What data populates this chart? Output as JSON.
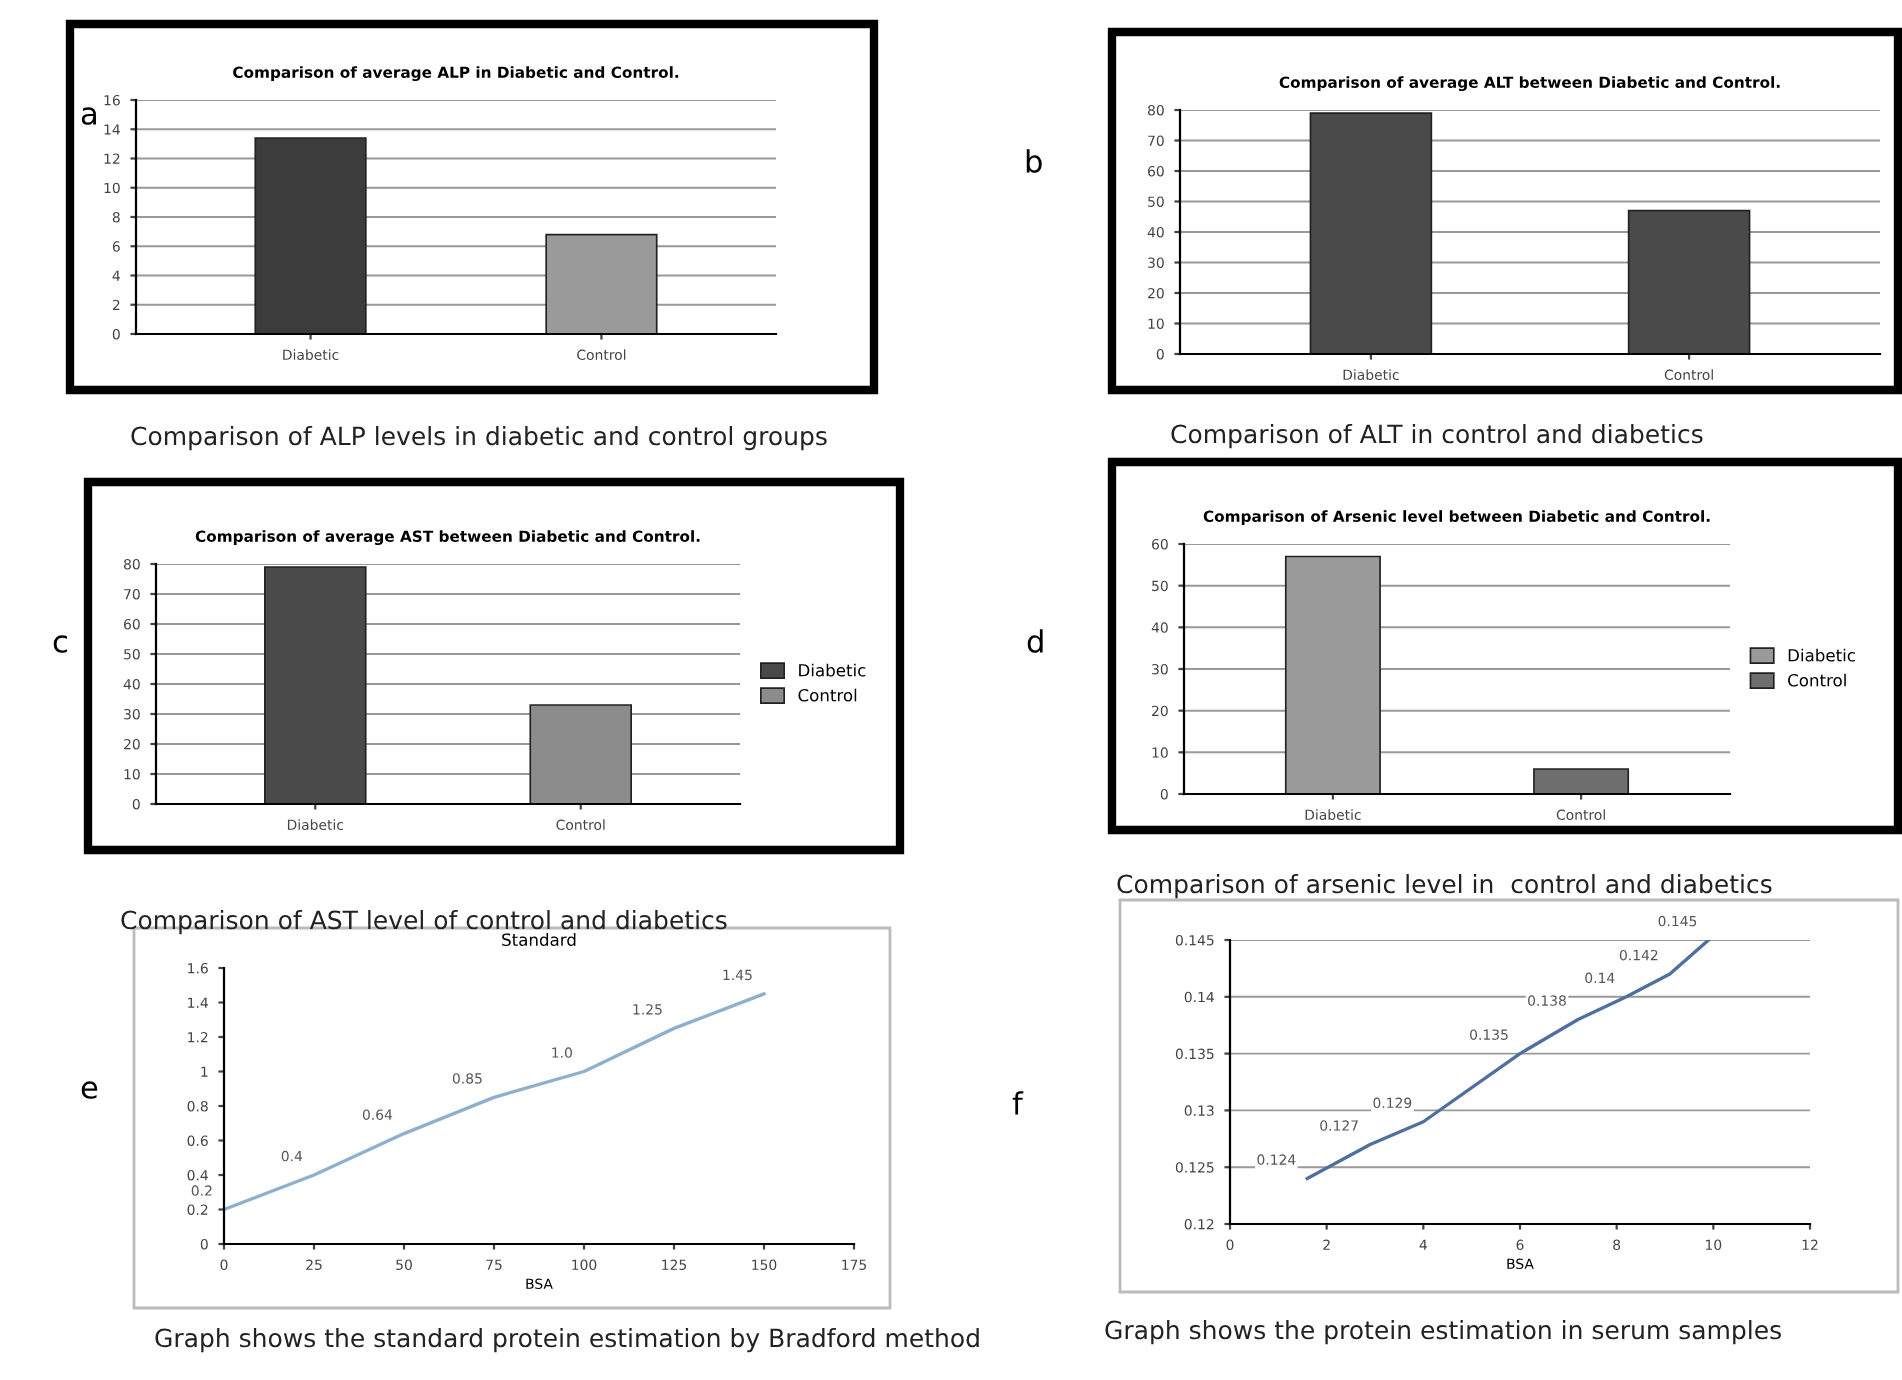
{
  "chart_data": [
    {
      "type": "bar",
      "title": "Comparison of average ALP in Diabetic and Control.",
      "categories": [
        "Diabetic",
        "Control"
      ],
      "values": [
        13.4,
        6.8
      ],
      "colors": [
        "#3c3c3c",
        "#9a9a9a"
      ],
      "ylim": [
        0,
        16
      ],
      "yticks": [
        0,
        2,
        4,
        6,
        8,
        10,
        12,
        14,
        16
      ],
      "grid": "y",
      "annotations": [
        "a",
        "Comparison of ALP levels in diabetic and control groups"
      ]
    },
    {
      "type": "bar",
      "title": "Comparison of average ALT between Diabetic and Control.",
      "categories": [
        "Diabetic",
        "Control"
      ],
      "values": [
        79,
        47
      ],
      "colors": [
        "#4a4a4a",
        "#4a4a4a"
      ],
      "ylim": [
        0,
        80
      ],
      "yticks": [
        0,
        10,
        20,
        30,
        40,
        50,
        60,
        70,
        80
      ],
      "grid": "y",
      "annotations": [
        "b",
        "Comparison of ALT in control and diabetics"
      ]
    },
    {
      "type": "bar",
      "title": "Comparison of average AST between Diabetic and Control.",
      "categories": [
        "Diabetic",
        "Control"
      ],
      "series": [
        {
          "name": "Diabetic",
          "color": "#4a4a4a",
          "values": [
            79,
            null
          ]
        },
        {
          "name": "Control",
          "color": "#8c8c8c",
          "values": [
            null,
            33
          ]
        }
      ],
      "ylim": [
        0,
        80
      ],
      "yticks": [
        0,
        10,
        20,
        30,
        40,
        50,
        60,
        70,
        80
      ],
      "grid": "y",
      "legend": "right",
      "annotations": [
        "c",
        "Comparison of AST level of control and diabetics"
      ]
    },
    {
      "type": "bar",
      "title": "Comparison of Arsenic level between Diabetic and Control.",
      "categories": [
        "Diabetic",
        "Control"
      ],
      "series": [
        {
          "name": "Diabetic",
          "color": "#9a9a9a",
          "values": [
            57,
            null
          ]
        },
        {
          "name": "Control",
          "color": "#6e6e6e",
          "values": [
            null,
            6
          ]
        }
      ],
      "ylim": [
        0,
        60
      ],
      "yticks": [
        0,
        10,
        20,
        30,
        40,
        50,
        60
      ],
      "grid": "y",
      "legend": "right",
      "annotations": [
        "d",
        "Comparison of arsenic level in  control and diabetics"
      ]
    },
    {
      "type": "line",
      "title": "Standard",
      "xlabel": "BSA",
      "x": [
        0,
        25,
        50,
        75,
        100,
        125,
        150
      ],
      "series": [
        {
          "color": "#8fb0cc",
          "values": [
            0.2,
            0.4,
            0.64,
            0.85,
            1.0,
            1.25,
            1.45
          ],
          "value_labels": [
            "0.2",
            "0.4",
            "0.64",
            "0.85",
            "1.0",
            "1.25",
            "1.45"
          ]
        }
      ],
      "xlim": [
        0,
        175
      ],
      "xticks": [
        0,
        25,
        50,
        75,
        100,
        125,
        150,
        175
      ],
      "ylim": [
        0,
        1.6
      ],
      "yticks": [
        0,
        0.2,
        0.4,
        0.6,
        0.8,
        1,
        1.2,
        1.4,
        1.6
      ],
      "grid": false,
      "marker": "none",
      "annotations": [
        "e",
        "Graph shows the standard protein estimation by Bradford method"
      ]
    },
    {
      "type": "line",
      "xlabel": "BSA",
      "x": [
        1.6,
        2.9,
        4.0,
        6.0,
        7.2,
        8.2,
        9.1,
        9.9
      ],
      "series": [
        {
          "color": "#4f6f9f",
          "values": [
            0.124,
            0.127,
            0.129,
            0.135,
            0.138,
            0.14,
            0.142,
            0.145
          ],
          "value_labels": [
            "0.124",
            "0.127",
            "0.129",
            "0.135",
            "0.138",
            "0.14",
            "0.142",
            "0.145"
          ]
        }
      ],
      "xlim": [
        0,
        12
      ],
      "xticks": [
        0,
        2,
        4,
        6,
        8,
        10,
        12
      ],
      "ylim": [
        0.12,
        0.145
      ],
      "yticks": [
        0.12,
        0.125,
        0.13,
        0.135,
        0.14,
        0.145
      ],
      "grid": "y",
      "marker": "none",
      "annotations": [
        "f",
        "Graph shows the protein estimation in serum samples"
      ]
    }
  ]
}
